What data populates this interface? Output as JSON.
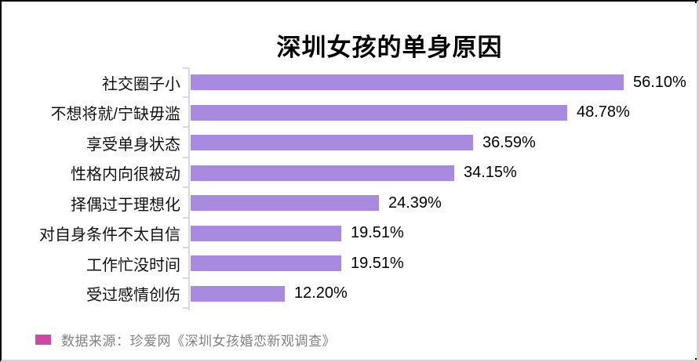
{
  "chart_data": {
    "type": "bar",
    "orientation": "horizontal",
    "title": "深圳女孩的单身原因",
    "categories": [
      "社交圈子小",
      "不想将就/宁缺毋滥",
      "享受单身状态",
      "性格内向很被动",
      "择偶过于理想化",
      "对自身条件不太自信",
      "工作忙没时间",
      "受过感情创伤"
    ],
    "values": [
      56.1,
      48.78,
      36.59,
      34.15,
      24.39,
      19.51,
      19.51,
      12.2
    ],
    "value_labels": [
      "56.10%",
      "48.78%",
      "36.59%",
      "34.15%",
      "24.39%",
      "19.51%",
      "19.51%",
      "12.20%"
    ],
    "xlabel": "",
    "ylabel": "",
    "xlim": [
      0,
      60
    ],
    "grid": false,
    "legend_position": "none",
    "bar_color": "#A88BE0",
    "axis_color": "#D9D9D9",
    "value_label_color": "#000000",
    "category_label_color": "#111111"
  },
  "source_legend": {
    "swatch_color": "#D246A5",
    "text": "数据来源：珍爱网《深圳女孩婚恋新观调查》",
    "text_color": "#808080"
  }
}
